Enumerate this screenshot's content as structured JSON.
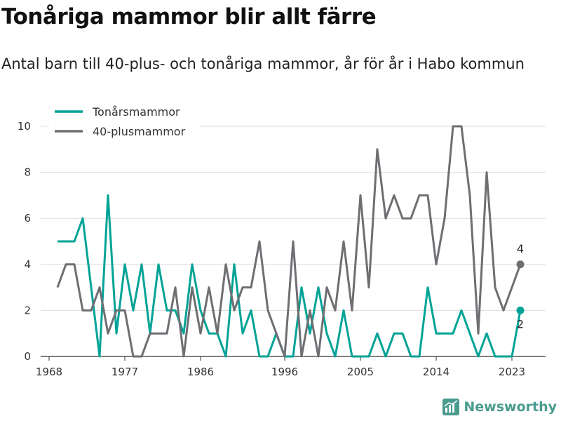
{
  "header": {
    "title": "Tonåriga mammor blir allt färre",
    "subtitle": "Antal barn till 40-plus- och tonåriga mammor, år för år i Habo kommun"
  },
  "brand": {
    "name": "Newsworthy",
    "icon": "newsworthy-logo-icon",
    "color": "#4a9b8e"
  },
  "chart_data": {
    "type": "line",
    "x_ticks": [
      1968,
      1977,
      1986,
      1996,
      2005,
      2014,
      2023
    ],
    "x_range": [
      1967,
      2027
    ],
    "y_range": [
      0,
      10
    ],
    "y_ticks": [
      0,
      2,
      4,
      6,
      8,
      10
    ],
    "grid": "horizontal",
    "legend_position": "top-left",
    "series": [
      {
        "name": "Tonårsmammor",
        "color": "#00a396",
        "x": [
          1969,
          1970,
          1971,
          1972,
          1973,
          1974,
          1975,
          1976,
          1977,
          1978,
          1979,
          1980,
          1981,
          1982,
          1983,
          1984,
          1985,
          1986,
          1987,
          1988,
          1989,
          1990,
          1991,
          1992,
          1993,
          1994,
          1995,
          1996,
          1997,
          1998,
          1999,
          2000,
          2001,
          2002,
          2003,
          2004,
          2005,
          2006,
          2007,
          2008,
          2009,
          2010,
          2011,
          2012,
          2013,
          2014,
          2015,
          2016,
          2017,
          2018,
          2019,
          2020,
          2021,
          2022,
          2023,
          2024
        ],
        "values": [
          5,
          5,
          5,
          6,
          3,
          0,
          7,
          1,
          4,
          2,
          4,
          1,
          4,
          2,
          2,
          1,
          4,
          2,
          1,
          1,
          0,
          4,
          1,
          2,
          0,
          0,
          1,
          0,
          0,
          3,
          1,
          3,
          1,
          0,
          2,
          0,
          0,
          0,
          1,
          0,
          1,
          1,
          0,
          0,
          3,
          1,
          1,
          1,
          2,
          1,
          0,
          1,
          0,
          0,
          0,
          2
        ],
        "end_label": "2"
      },
      {
        "name": "40-plusmammor",
        "color": "#6e6e73",
        "x": [
          1969,
          1970,
          1971,
          1972,
          1973,
          1974,
          1975,
          1976,
          1977,
          1978,
          1979,
          1980,
          1981,
          1982,
          1983,
          1984,
          1985,
          1986,
          1987,
          1988,
          1989,
          1990,
          1991,
          1992,
          1993,
          1994,
          1995,
          1996,
          1997,
          1998,
          1999,
          2000,
          2001,
          2002,
          2003,
          2004,
          2005,
          2006,
          2007,
          2008,
          2009,
          2010,
          2011,
          2012,
          2013,
          2014,
          2015,
          2016,
          2017,
          2018,
          2019,
          2020,
          2021,
          2022,
          2023,
          2024
        ],
        "values": [
          3,
          4,
          4,
          2,
          2,
          3,
          1,
          2,
          2,
          0,
          0,
          1,
          1,
          1,
          3,
          0,
          3,
          1,
          3,
          1,
          4,
          2,
          3,
          3,
          5,
          2,
          1,
          0,
          5,
          0,
          2,
          0,
          3,
          2,
          5,
          2,
          7,
          3,
          9,
          6,
          7,
          6,
          6,
          7,
          7,
          4,
          6,
          10,
          10,
          7,
          1,
          8,
          3,
          2,
          3,
          4
        ],
        "end_label": "4"
      }
    ]
  }
}
